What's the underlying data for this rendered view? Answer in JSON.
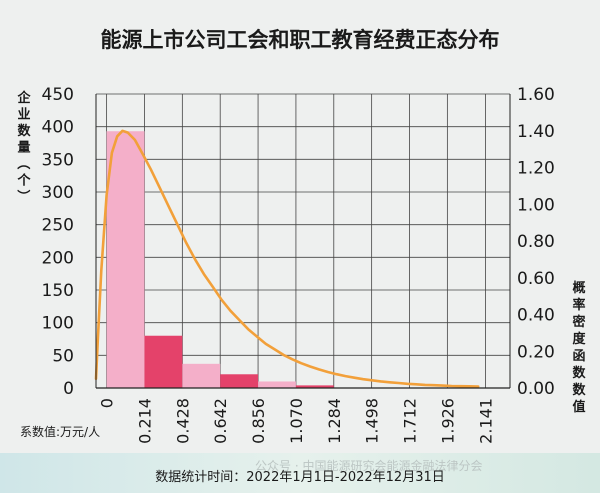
{
  "chart_data": {
    "type": "bar",
    "title": "能源上市公司工会和职工教育经费正态分布",
    "ylabel_left": "企业数量（个）",
    "ylabel_right": "概率密度函数数值",
    "xlabel": "系数值:万元/人",
    "footer": "数据统计时间：2022年1月1日-2022年12月31日",
    "watermark": "公众号 · 中国能源研究会能源金融法律分会",
    "x_tick_labels": [
      "0",
      "0.214",
      "0.428",
      "0.642",
      "0.856",
      "1.070",
      "1.284",
      "1.498",
      "1.712",
      "1.926",
      "2.141"
    ],
    "x_ticks": [
      0,
      0.214,
      0.428,
      0.642,
      0.856,
      1.07,
      1.284,
      1.498,
      1.712,
      1.926,
      2.141
    ],
    "y_left_ticks": [
      0,
      50,
      100,
      150,
      200,
      250,
      300,
      350,
      400,
      450
    ],
    "y_left_lim": [
      0,
      450
    ],
    "y_right_ticks": [
      "0.00",
      "0.20",
      "0.40",
      "0.60",
      "0.80",
      "1.00",
      "1.20",
      "1.40",
      "1.60"
    ],
    "y_right_lim": [
      0,
      1.6
    ],
    "bins": [
      {
        "x0": 0,
        "x1": 0.214,
        "count": 393
      },
      {
        "x0": 0.214,
        "x1": 0.428,
        "count": 80
      },
      {
        "x0": 0.428,
        "x1": 0.642,
        "count": 37
      },
      {
        "x0": 0.642,
        "x1": 0.856,
        "count": 21
      },
      {
        "x0": 0.856,
        "x1": 1.07,
        "count": 10
      },
      {
        "x0": 1.07,
        "x1": 1.284,
        "count": 4
      }
    ],
    "density_curve": {
      "x": [
        -0.06,
        -0.05,
        -0.03,
        0.0,
        0.03,
        0.06,
        0.09,
        0.12,
        0.16,
        0.2,
        0.25,
        0.3,
        0.35,
        0.4,
        0.45,
        0.5,
        0.55,
        0.6,
        0.65,
        0.7,
        0.75,
        0.8,
        0.85,
        0.9,
        0.95,
        1.0,
        1.05,
        1.1,
        1.15,
        1.2,
        1.25,
        1.3,
        1.35,
        1.4,
        1.45,
        1.5,
        1.55,
        1.6,
        1.65,
        1.7,
        1.75,
        1.8,
        1.85,
        1.9,
        1.95,
        2.0,
        2.05,
        2.1
      ],
      "y": [
        0.05,
        0.26,
        0.64,
        1.05,
        1.28,
        1.37,
        1.4,
        1.39,
        1.35,
        1.28,
        1.19,
        1.09,
        0.99,
        0.89,
        0.79,
        0.7,
        0.62,
        0.55,
        0.48,
        0.42,
        0.37,
        0.32,
        0.28,
        0.24,
        0.21,
        0.18,
        0.156,
        0.135,
        0.117,
        0.101,
        0.087,
        0.075,
        0.065,
        0.056,
        0.048,
        0.042,
        0.036,
        0.031,
        0.027,
        0.023,
        0.02,
        0.017,
        0.015,
        0.013,
        0.011,
        0.01,
        0.009,
        0.008
      ]
    },
    "colors": {
      "bar_light": "#f4afc9",
      "bar_dark": "#e4426a",
      "curve": "#f2a03a",
      "gridline": "#444444",
      "axis": "#222222"
    }
  }
}
